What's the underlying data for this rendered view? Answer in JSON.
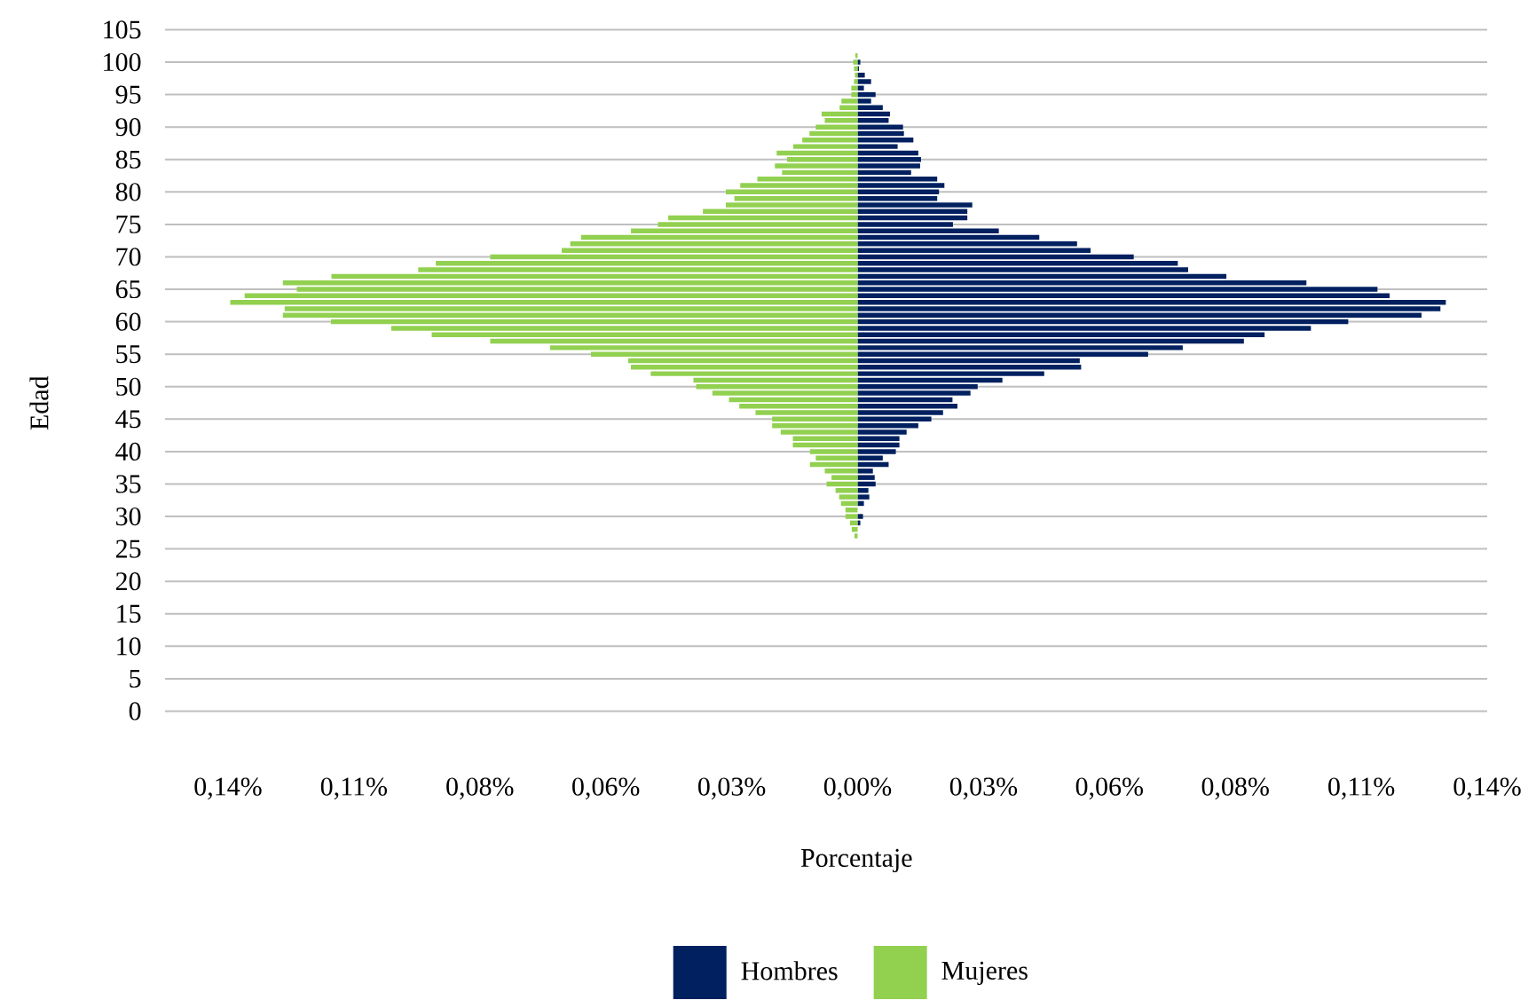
{
  "chart_data": {
    "type": "bar",
    "orientation": "horizontal",
    "xlabel": "Porcentaje",
    "ylabel": "Edad",
    "categories": [
      "105",
      null,
      null,
      null,
      null,
      "100",
      null,
      null,
      null,
      null,
      "95",
      null,
      null,
      null,
      null,
      "90",
      null,
      null,
      null,
      null,
      "85",
      null,
      null,
      null,
      null,
      "80",
      null,
      null,
      null,
      null,
      "75",
      null,
      null,
      null,
      null,
      "70",
      null,
      null,
      null,
      null,
      "65",
      null,
      null,
      null,
      null,
      "60",
      null,
      null,
      null,
      null,
      "55",
      null,
      null,
      null,
      null,
      "50",
      null,
      null,
      null,
      null,
      "45",
      null,
      null,
      null,
      null,
      "40",
      null,
      null,
      null,
      null,
      "35",
      null,
      null,
      null,
      null,
      "30",
      null,
      null,
      null,
      null,
      "25",
      null,
      null,
      null,
      null,
      "20",
      null,
      null,
      null,
      null,
      "15",
      null,
      null,
      null,
      null,
      "10",
      null,
      null,
      null,
      null,
      "5",
      null,
      null,
      null,
      null,
      "0"
    ],
    "series": [
      {
        "name": "Hombres",
        "color": "#002060",
        "values": [
          null,
          null,
          null,
          null,
          null,
          0.0006,
          0.0003,
          0.0016,
          0.003,
          0.0014,
          0.004,
          0.003,
          0.0056,
          0.0072,
          0.0069,
          0.0101,
          0.0103,
          0.0124,
          0.0089,
          0.0135,
          0.0141,
          0.0139,
          0.0119,
          0.0177,
          0.0193,
          0.0181,
          0.0177,
          0.0255,
          0.0244,
          0.0244,
          0.0212,
          0.0314,
          0.0404,
          0.0488,
          0.0518,
          0.0614,
          0.0712,
          0.0735,
          0.082,
          0.0998,
          0.1156,
          0.1183,
          0.1308,
          0.1296,
          0.1254,
          0.1091,
          0.1008,
          0.0905,
          0.0859,
          0.0723,
          0.0646,
          0.0494,
          0.0497,
          0.0415,
          0.0322,
          0.0267,
          0.0251,
          0.0211,
          0.0222,
          0.019,
          0.0164,
          0.0135,
          0.0109,
          0.0093,
          0.0093,
          0.0085,
          0.0056,
          0.0069,
          0.0034,
          0.0038,
          0.004,
          0.0024,
          0.0026,
          0.0014,
          null,
          0.0012,
          0.0006,
          null,
          null,
          null,
          null,
          null,
          null,
          null,
          null,
          null,
          null,
          null,
          null,
          null,
          null,
          null,
          null,
          null,
          null,
          null,
          null,
          null,
          null,
          null,
          null,
          null,
          null,
          null,
          null,
          null
        ]
      },
      {
        "name": "Mujeres",
        "color": "#92d050",
        "values": [
          null,
          null,
          null,
          null,
          -0.0005,
          -0.001,
          -0.0008,
          -0.0006,
          -0.0008,
          -0.0014,
          -0.0014,
          -0.0036,
          -0.004,
          -0.008,
          -0.0073,
          -0.0093,
          -0.0107,
          -0.0123,
          -0.0143,
          -0.018,
          -0.0157,
          -0.0184,
          -0.0168,
          -0.0223,
          -0.0261,
          -0.0293,
          -0.0274,
          -0.0293,
          -0.0344,
          -0.0421,
          -0.0444,
          -0.0504,
          -0.0615,
          -0.0639,
          -0.0658,
          -0.0817,
          -0.0938,
          -0.0977,
          -0.117,
          -0.1278,
          -0.1247,
          -0.1363,
          -0.1395,
          -0.1274,
          -0.1278,
          -0.1171,
          -0.1037,
          -0.0947,
          -0.0817,
          -0.0684,
          -0.0593,
          -0.051,
          -0.0504,
          -0.046,
          -0.0365,
          -0.0359,
          -0.0323,
          -0.0286,
          -0.0263,
          -0.0227,
          -0.019,
          -0.019,
          -0.0171,
          -0.0144,
          -0.0144,
          -0.0106,
          -0.0093,
          -0.0106,
          -0.0073,
          -0.0058,
          -0.0069,
          -0.0049,
          -0.0041,
          -0.0037,
          -0.0027,
          -0.0027,
          -0.0017,
          -0.0013,
          -0.0007,
          null,
          null,
          null,
          null,
          null,
          null,
          null,
          null,
          null,
          null,
          null,
          null,
          null,
          null,
          null,
          null,
          null,
          null,
          null,
          null,
          null,
          null,
          null,
          null,
          null,
          null,
          null
        ]
      }
    ],
    "xlim": [
      -0.154,
      0.14
    ],
    "xticks": [
      {
        "value": -0.14,
        "label": "0,14%"
      },
      {
        "value": -0.112,
        "label": "0,11%"
      },
      {
        "value": -0.084,
        "label": "0,08%"
      },
      {
        "value": -0.056,
        "label": "0,06%"
      },
      {
        "value": -0.028,
        "label": "0,03%"
      },
      {
        "value": 0,
        "label": "0,00%"
      },
      {
        "value": 0.028,
        "label": "0,03%"
      },
      {
        "value": 0.056,
        "label": "0,06%"
      },
      {
        "value": 0.084,
        "label": "0,08%"
      },
      {
        "value": 0.112,
        "label": "0,11%"
      },
      {
        "value": 0.14,
        "label": "0,14%"
      }
    ],
    "grid": "y",
    "legend": "bottom",
    "stacked": true
  }
}
